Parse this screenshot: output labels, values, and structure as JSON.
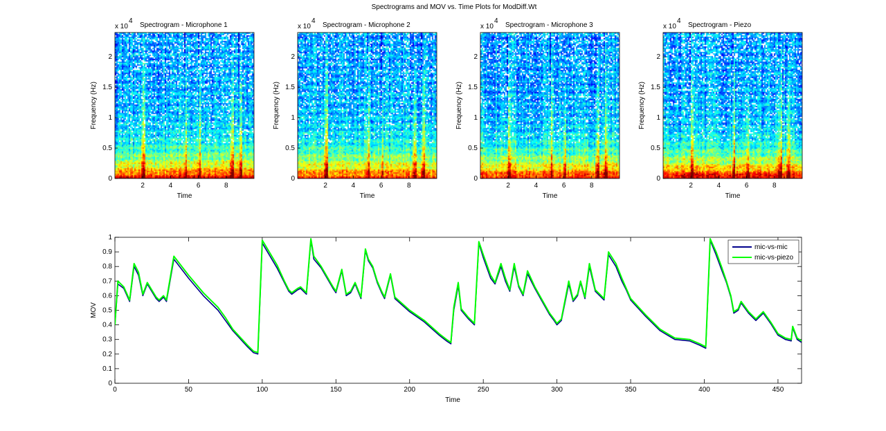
{
  "figure": {
    "title": "Spectrograms and MOV vs. Time Plots for ModDiff.Wt"
  },
  "spectrograms": [
    {
      "title": "Spectrogram - Microphone 1",
      "xlabel": "Time",
      "ylabel": "Frequency (Hz)",
      "y_multiplier": "x 10",
      "y_exponent": "4",
      "xticks": [
        "2",
        "4",
        "6",
        "8"
      ],
      "yticks": [
        "0",
        "0.5",
        "1",
        "1.5",
        "2"
      ],
      "xlim": [
        0,
        10
      ],
      "ylim": [
        0,
        24000
      ],
      "colormap": "jet",
      "break_times": [
        2.0,
        5.0,
        6.0,
        8.3,
        8.9
      ],
      "low_band_energy": "high"
    },
    {
      "title": "Spectrogram - Microphone 2",
      "xlabel": "Time",
      "ylabel": "Frequency (Hz)",
      "y_multiplier": "x 10",
      "y_exponent": "4",
      "xticks": [
        "2",
        "4",
        "6",
        "8"
      ],
      "yticks": [
        "0",
        "0.5",
        "1",
        "1.5",
        "2"
      ],
      "xlim": [
        0,
        10
      ],
      "ylim": [
        0,
        24000
      ],
      "colormap": "jet",
      "break_times": [
        2.0,
        5.0,
        6.0,
        8.3,
        8.9
      ],
      "low_band_energy": "medium"
    },
    {
      "title": "Spectrogram - Microphone 3",
      "xlabel": "Time",
      "ylabel": "Frequency (Hz)",
      "y_multiplier": "x 10",
      "y_exponent": "4",
      "xticks": [
        "2",
        "4",
        "6",
        "8"
      ],
      "yticks": [
        "0",
        "0.5",
        "1",
        "1.5",
        "2"
      ],
      "xlim": [
        0,
        10
      ],
      "ylim": [
        0,
        24000
      ],
      "colormap": "jet",
      "break_times": [
        2.0,
        5.0,
        6.0,
        8.3,
        8.9
      ],
      "low_band_energy": "high"
    },
    {
      "title": "Spectrogram - Piezo",
      "xlabel": "Time",
      "ylabel": "Frequency (Hz)",
      "y_multiplier": "x 10",
      "y_exponent": "4",
      "xticks": [
        "2",
        "4",
        "6",
        "8"
      ],
      "yticks": [
        "0",
        "0.5",
        "1",
        "1.5",
        "2"
      ],
      "xlim": [
        0,
        10
      ],
      "ylim": [
        0,
        24000
      ],
      "colormap": "jet",
      "break_times": [
        2.0,
        5.0,
        6.0,
        8.3,
        8.9
      ],
      "low_band_energy": "very-high"
    }
  ],
  "chart_data": {
    "type": "line",
    "title": "",
    "xlabel": "Time",
    "ylabel": "MOV",
    "xlim": [
      0,
      466
    ],
    "ylim": [
      0,
      1
    ],
    "xticks": [
      "0",
      "50",
      "100",
      "150",
      "200",
      "250",
      "300",
      "350",
      "400",
      "450"
    ],
    "yticks": [
      "0",
      "0.1",
      "0.2",
      "0.3",
      "0.4",
      "0.5",
      "0.6",
      "0.7",
      "0.8",
      "0.9",
      "1"
    ],
    "grid": false,
    "legend_position": "top-right",
    "series": [
      {
        "name": "mic-vs-mic",
        "color": "#00008b",
        "x": [
          0,
          2,
          6,
          10,
          13,
          16,
          19,
          22,
          25,
          28,
          30,
          33,
          35,
          40,
          50,
          60,
          70,
          75,
          80,
          90,
          94,
          97,
          100,
          110,
          115,
          118,
          120,
          124,
          126,
          130,
          133,
          135,
          140,
          148,
          150,
          154,
          157,
          160,
          163,
          167,
          170,
          172,
          175,
          178,
          181,
          183,
          187,
          190,
          200,
          210,
          220,
          225,
          228,
          230,
          233,
          235,
          240,
          244,
          247,
          250,
          255,
          258,
          262,
          265,
          268,
          271,
          274,
          277,
          280,
          285,
          290,
          295,
          298,
          300,
          303,
          308,
          311,
          314,
          316,
          319,
          322,
          326,
          329,
          332,
          335,
          340,
          344,
          347,
          350,
          360,
          370,
          375,
          380,
          390,
          397,
          401,
          404,
          408,
          412,
          415,
          418,
          420,
          423,
          425,
          430,
          435,
          440,
          445,
          450,
          455,
          459,
          460,
          463,
          466
        ],
        "y": [
          0.4,
          0.68,
          0.65,
          0.56,
          0.8,
          0.74,
          0.6,
          0.68,
          0.63,
          0.58,
          0.56,
          0.59,
          0.56,
          0.85,
          0.72,
          0.6,
          0.5,
          0.43,
          0.36,
          0.25,
          0.21,
          0.2,
          0.96,
          0.79,
          0.69,
          0.63,
          0.61,
          0.64,
          0.65,
          0.61,
          0.98,
          0.85,
          0.79,
          0.65,
          0.62,
          0.77,
          0.6,
          0.62,
          0.68,
          0.58,
          0.91,
          0.84,
          0.79,
          0.69,
          0.62,
          0.58,
          0.74,
          0.58,
          0.49,
          0.42,
          0.33,
          0.29,
          0.27,
          0.5,
          0.67,
          0.5,
          0.44,
          0.4,
          0.96,
          0.86,
          0.72,
          0.68,
          0.8,
          0.7,
          0.63,
          0.8,
          0.66,
          0.6,
          0.75,
          0.65,
          0.56,
          0.47,
          0.43,
          0.4,
          0.43,
          0.68,
          0.56,
          0.6,
          0.69,
          0.58,
          0.8,
          0.63,
          0.6,
          0.57,
          0.88,
          0.8,
          0.7,
          0.64,
          0.57,
          0.46,
          0.36,
          0.33,
          0.3,
          0.29,
          0.26,
          0.24,
          0.98,
          0.88,
          0.77,
          0.69,
          0.59,
          0.48,
          0.5,
          0.55,
          0.48,
          0.43,
          0.48,
          0.41,
          0.33,
          0.3,
          0.29,
          0.38,
          0.3,
          0.28
        ]
      },
      {
        "name": "mic-vs-piezo",
        "color": "#00ff00",
        "x": [
          0,
          2,
          6,
          10,
          13,
          16,
          19,
          22,
          25,
          28,
          30,
          33,
          35,
          40,
          50,
          60,
          70,
          75,
          80,
          90,
          94,
          97,
          100,
          110,
          115,
          118,
          120,
          124,
          126,
          130,
          133,
          135,
          140,
          148,
          150,
          154,
          157,
          160,
          163,
          167,
          170,
          172,
          175,
          178,
          181,
          183,
          187,
          190,
          200,
          210,
          220,
          225,
          228,
          230,
          233,
          235,
          240,
          244,
          247,
          250,
          255,
          258,
          262,
          265,
          268,
          271,
          274,
          277,
          280,
          285,
          290,
          295,
          298,
          300,
          303,
          308,
          311,
          314,
          316,
          319,
          322,
          326,
          329,
          332,
          335,
          340,
          344,
          347,
          350,
          360,
          370,
          375,
          380,
          390,
          397,
          401,
          404,
          408,
          412,
          415,
          418,
          420,
          423,
          425,
          430,
          435,
          440,
          445,
          450,
          455,
          459,
          460,
          463,
          466
        ],
        "y": [
          0.4,
          0.7,
          0.66,
          0.57,
          0.82,
          0.76,
          0.61,
          0.69,
          0.64,
          0.59,
          0.57,
          0.6,
          0.57,
          0.87,
          0.74,
          0.62,
          0.52,
          0.45,
          0.37,
          0.26,
          0.22,
          0.21,
          0.98,
          0.81,
          0.7,
          0.64,
          0.62,
          0.65,
          0.66,
          0.62,
          0.99,
          0.87,
          0.8,
          0.66,
          0.63,
          0.78,
          0.61,
          0.63,
          0.69,
          0.59,
          0.92,
          0.85,
          0.8,
          0.7,
          0.63,
          0.59,
          0.75,
          0.59,
          0.5,
          0.43,
          0.34,
          0.3,
          0.28,
          0.52,
          0.69,
          0.51,
          0.45,
          0.41,
          0.97,
          0.88,
          0.74,
          0.69,
          0.82,
          0.72,
          0.64,
          0.82,
          0.67,
          0.61,
          0.77,
          0.66,
          0.57,
          0.48,
          0.44,
          0.41,
          0.44,
          0.7,
          0.57,
          0.61,
          0.7,
          0.59,
          0.82,
          0.64,
          0.61,
          0.58,
          0.9,
          0.82,
          0.72,
          0.65,
          0.58,
          0.47,
          0.37,
          0.34,
          0.31,
          0.3,
          0.27,
          0.25,
          0.99,
          0.9,
          0.79,
          0.7,
          0.6,
          0.49,
          0.51,
          0.56,
          0.49,
          0.44,
          0.49,
          0.42,
          0.34,
          0.31,
          0.3,
          0.39,
          0.31,
          0.29
        ]
      }
    ]
  }
}
